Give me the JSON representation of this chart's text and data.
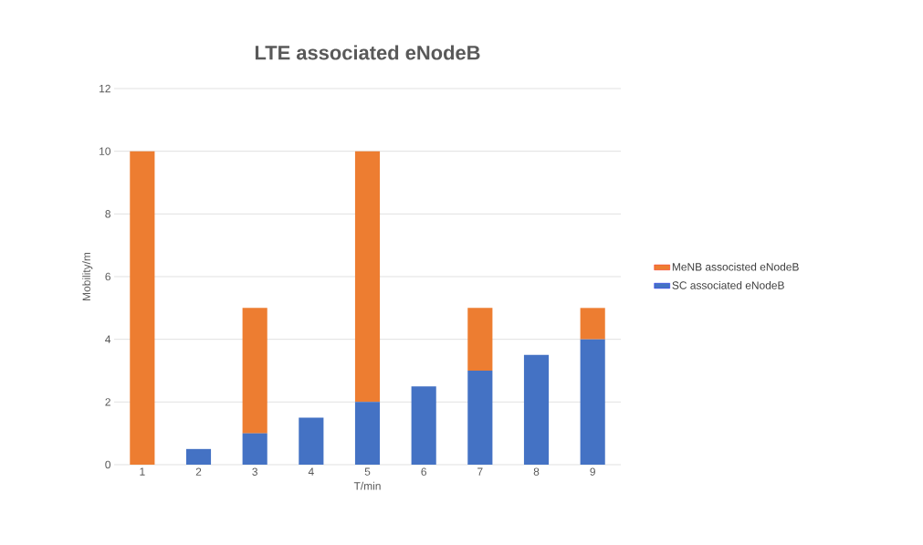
{
  "chart_data": {
    "type": "bar",
    "title": "LTE associated eNodeB",
    "xlabel": "T/min",
    "ylabel": "Mobility/m",
    "categories": [
      "1",
      "2",
      "3",
      "4",
      "5",
      "6",
      "7",
      "8",
      "9"
    ],
    "series": [
      {
        "name": "SC associated eNodeB",
        "color": "#4472c4",
        "values": [
          0,
          0.5,
          1,
          1.5,
          2,
          2.5,
          3,
          3.5,
          4
        ]
      },
      {
        "name": "MeNB associsted eNodeB",
        "color": "#ed7d31",
        "values": [
          10,
          0,
          4,
          0,
          8,
          0,
          2,
          0,
          1
        ]
      }
    ],
    "stacked": true,
    "ylim": [
      0,
      12
    ],
    "yticks": [
      0,
      2,
      4,
      6,
      8,
      10,
      12
    ],
    "grid": "y",
    "legend": "right"
  }
}
